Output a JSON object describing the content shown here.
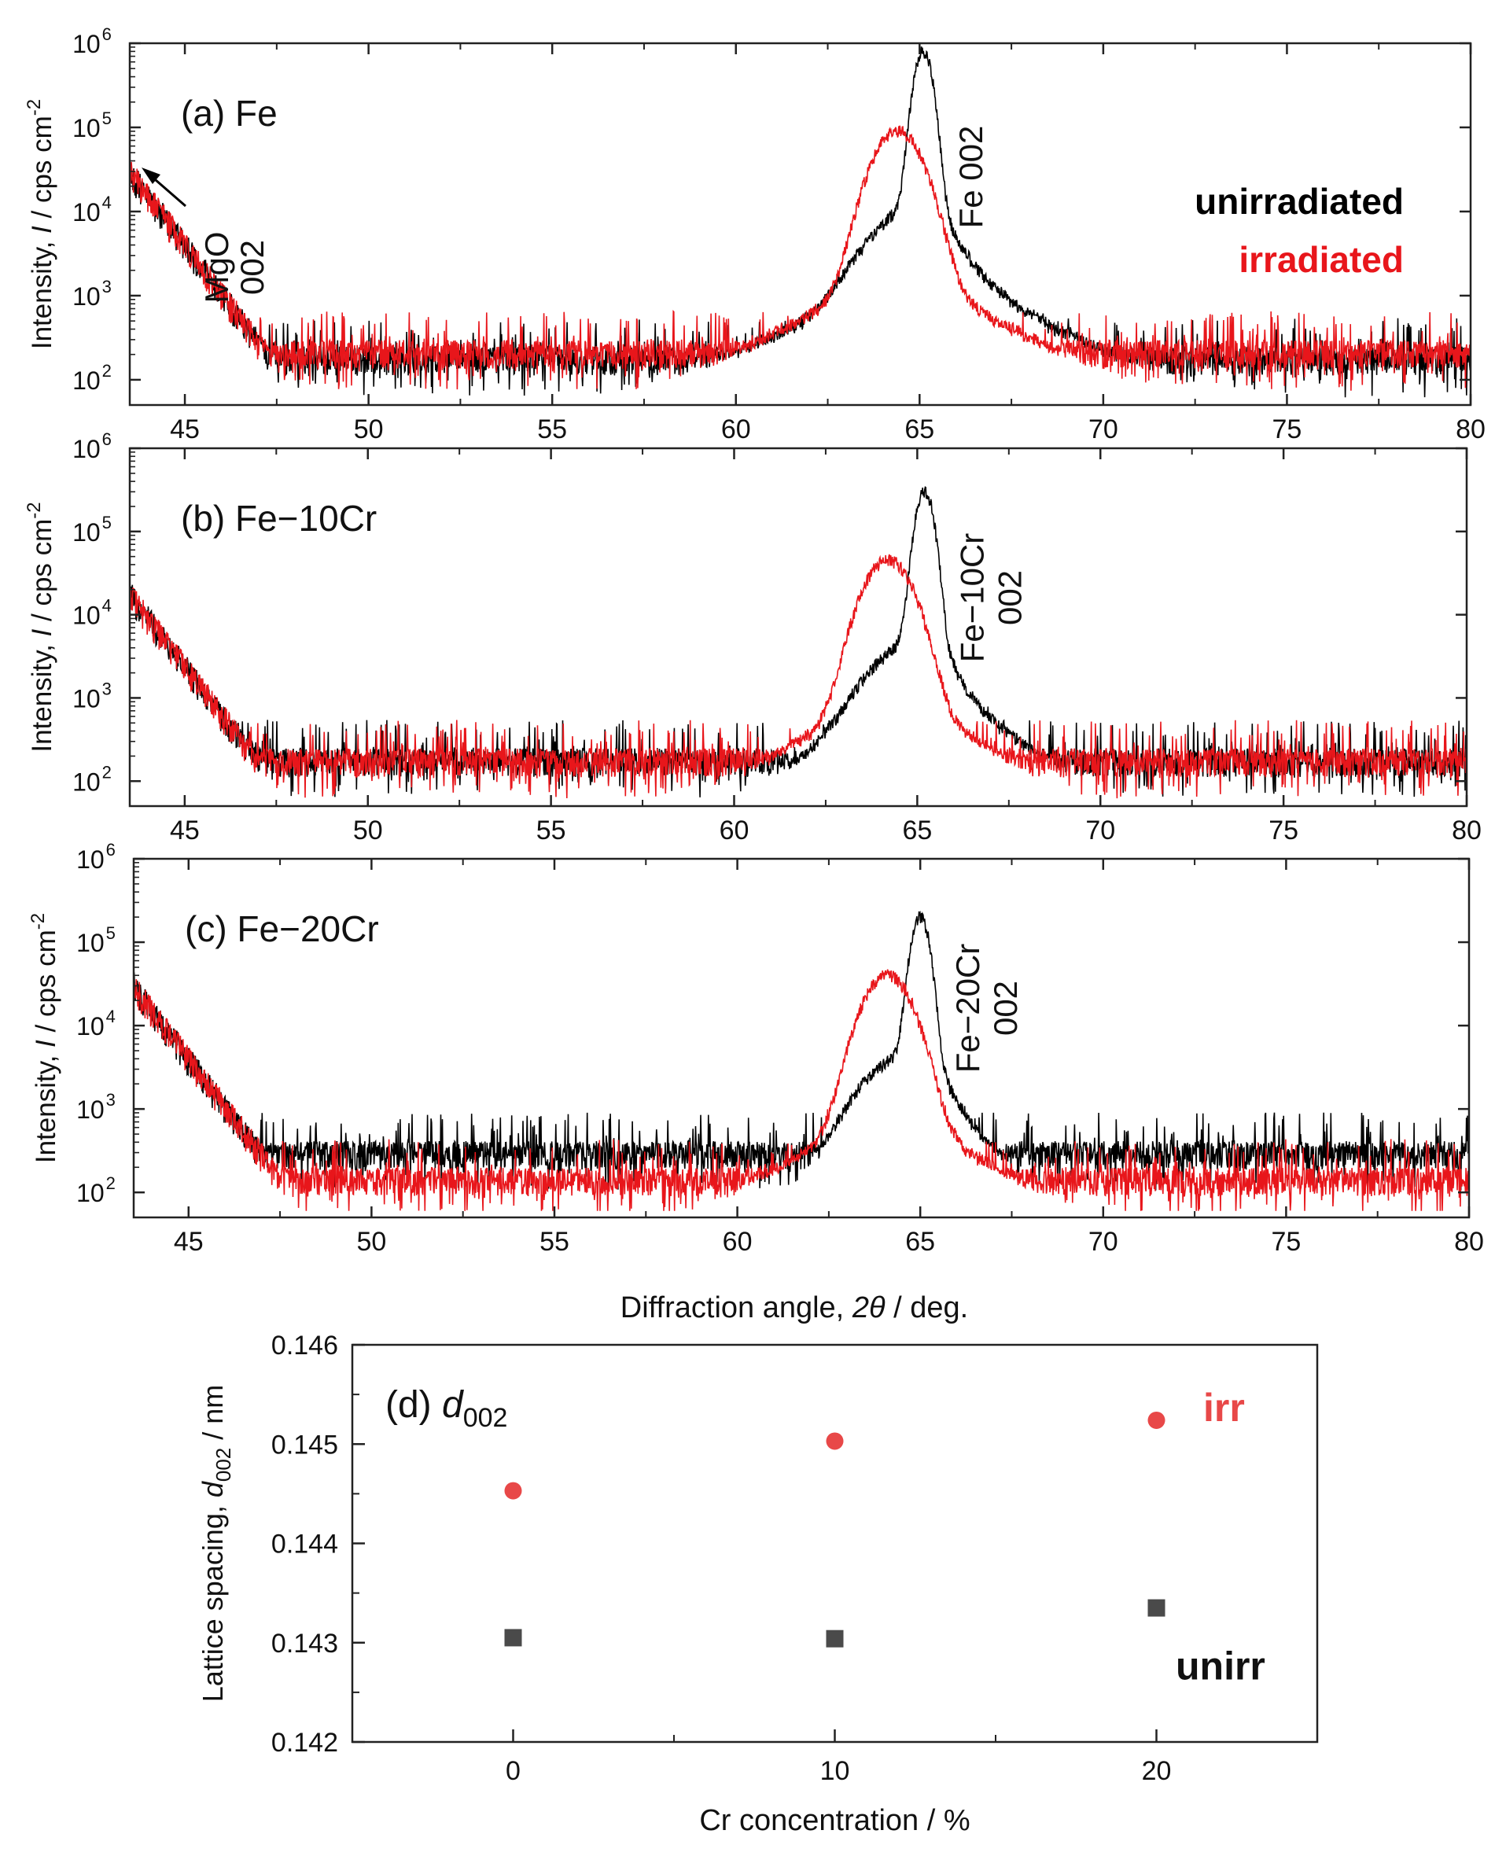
{
  "figure": {
    "xlabel_prefix": "Diffraction angle, ",
    "xlabel_symbol": "2θ",
    "xlabel_suffix": " / deg.",
    "ylabel_prefix": "Intensity, ",
    "ylabel_symbol": "I",
    "ylabel_suffix": " / cps cm",
    "ylabel_exp": "-2",
    "legend_unirradiated": "unirradiated",
    "legend_irradiated": "irradiated",
    "color_unirradiated": "#000000",
    "color_irradiated": "#e8161b",
    "mgo_label_line1": "MgO",
    "mgo_label_line2": "002"
  },
  "chart_data": [
    {
      "type": "line",
      "panel": "a",
      "title": "(a) Fe",
      "peak_label_line1": "Fe 002",
      "peak_label_line2": "",
      "xlim": [
        43.5,
        80
      ],
      "ylim_log10": [
        1.7,
        6
      ],
      "x_ticks": [
        45,
        50,
        55,
        60,
        65,
        70,
        75,
        80
      ],
      "y_ticks_base": "10",
      "y_ticks_exp": [
        "2",
        "3",
        "4",
        "5",
        "6"
      ],
      "series": [
        {
          "name": "unirradiated",
          "peak_x": 65.1,
          "peak_y": 800000,
          "shoulder_x": 64.3,
          "shoulder_y": 4000,
          "baseline": 150
        },
        {
          "name": "irradiated",
          "peak_x": 64.4,
          "peak_y": 90000,
          "baseline": 180
        }
      ],
      "mgo_edge_y": 30000
    },
    {
      "type": "line",
      "panel": "b",
      "title": "(b) Fe−10Cr",
      "peak_label_line1": "Fe−10Cr",
      "peak_label_line2": "002",
      "xlim": [
        43.5,
        80
      ],
      "ylim_log10": [
        1.7,
        6
      ],
      "x_ticks": [
        45,
        50,
        55,
        60,
        65,
        70,
        75,
        80
      ],
      "y_ticks_base": "10",
      "y_ticks_exp": [
        "2",
        "3",
        "4",
        "5",
        "6"
      ],
      "series": [
        {
          "name": "unirradiated",
          "peak_x": 65.2,
          "peak_y": 300000,
          "shoulder_x": 64.4,
          "shoulder_y": 2000,
          "baseline": 150
        },
        {
          "name": "irradiated",
          "peak_x": 64.2,
          "peak_y": 45000,
          "baseline": 150
        }
      ],
      "mgo_edge_y": 18000
    },
    {
      "type": "line",
      "panel": "c",
      "title": "(c) Fe−20Cr",
      "peak_label_line1": "Fe−20Cr",
      "peak_label_line2": "002",
      "xlim": [
        43.5,
        80
      ],
      "ylim_log10": [
        1.7,
        6
      ],
      "x_ticks": [
        45,
        50,
        55,
        60,
        65,
        70,
        75,
        80
      ],
      "y_ticks_base": "10",
      "y_ticks_exp": [
        "2",
        "3",
        "4",
        "5",
        "6"
      ],
      "series": [
        {
          "name": "unirradiated",
          "peak_x": 65.0,
          "peak_y": 200000,
          "shoulder_x": 64.2,
          "shoulder_y": 2500,
          "baseline": 250
        },
        {
          "name": "irradiated",
          "peak_x": 64.1,
          "peak_y": 40000,
          "baseline": 120
        }
      ],
      "mgo_edge_y": 30000
    },
    {
      "type": "scatter",
      "panel": "d",
      "title_prefix": "(d) ",
      "title_symbol": "d",
      "title_sub": "002",
      "xlabel": "Cr concentration / %",
      "ylabel_prefix": "Lattice spacing, ",
      "ylabel_symbol": "d",
      "ylabel_sub": "002",
      "ylabel_suffix": " / nm",
      "xlim": [
        -5,
        25
      ],
      "ylim": [
        0.142,
        0.146
      ],
      "x_ticks": [
        "0",
        "10",
        "20"
      ],
      "y_ticks": [
        "0.142",
        "0.143",
        "0.144",
        "0.145",
        "0.146"
      ],
      "series": [
        {
          "name": "irr",
          "label": "irr",
          "x": [
            0,
            10,
            20
          ],
          "y": [
            0.14453,
            0.14503,
            0.14524
          ],
          "color": "#e84848",
          "marker": "circle"
        },
        {
          "name": "unirr",
          "label": "unirr",
          "x": [
            0,
            10,
            20
          ],
          "y": [
            0.14305,
            0.14304,
            0.14335
          ],
          "color": "#4a4a4a",
          "marker": "square"
        }
      ]
    }
  ]
}
